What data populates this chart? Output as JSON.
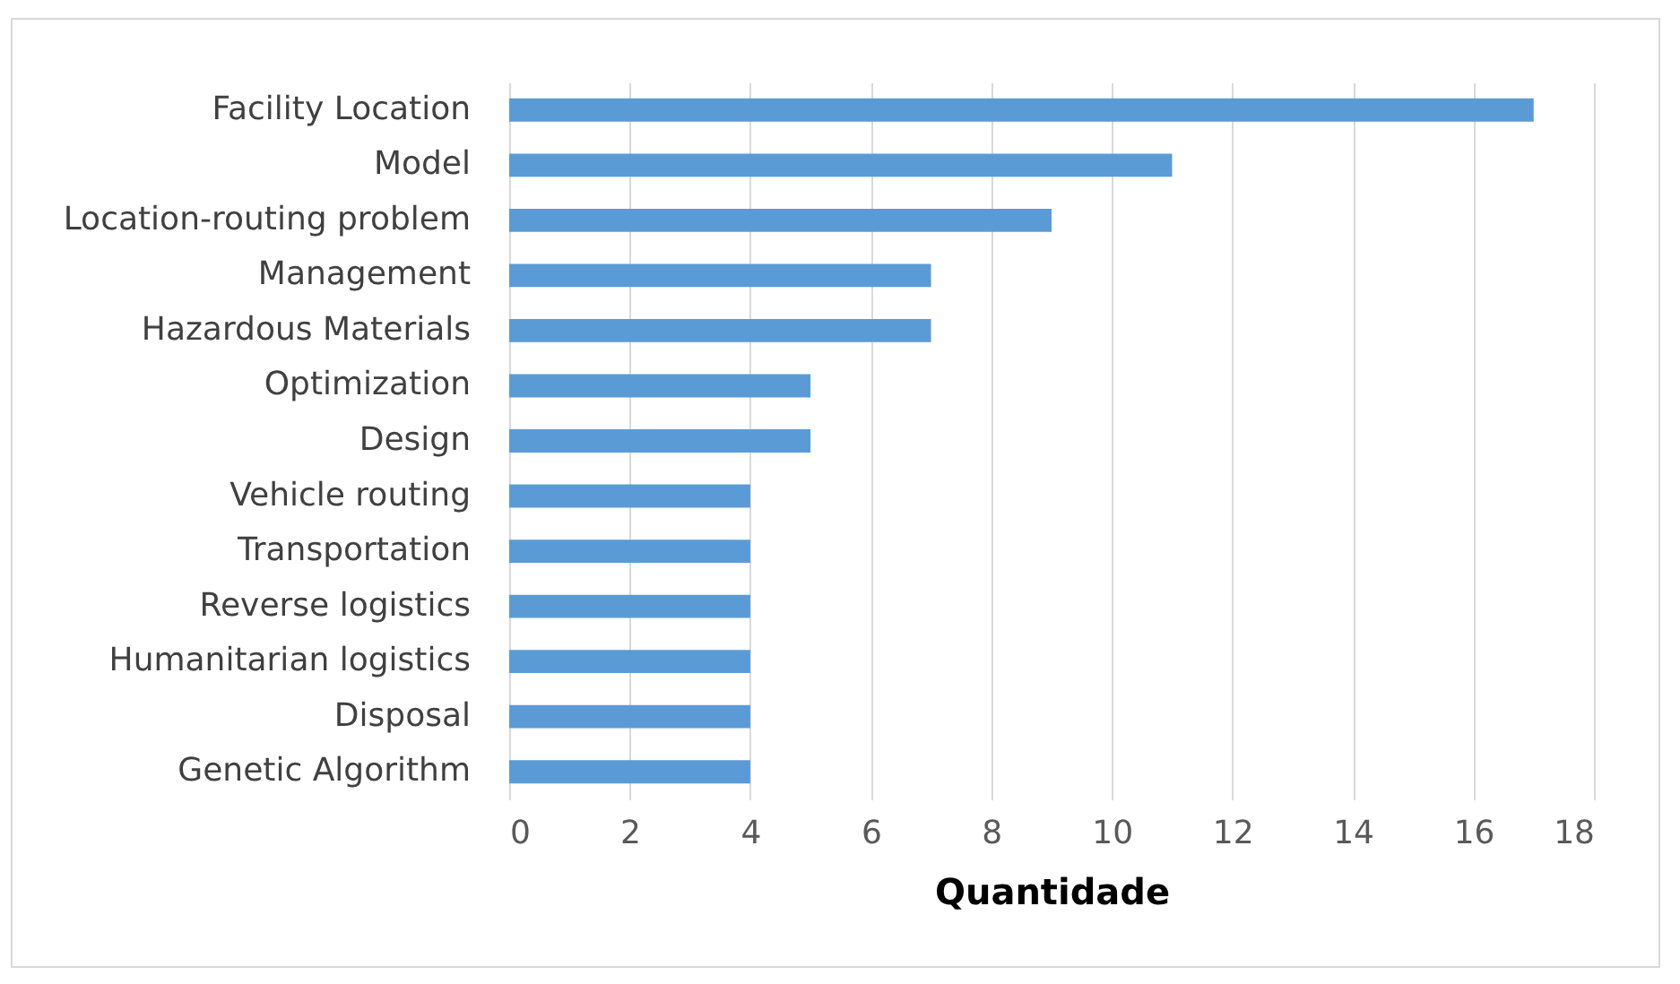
{
  "chart_data": {
    "type": "bar",
    "orientation": "horizontal",
    "xlabel": "Quantidade",
    "categories": [
      "Facility Location",
      "Model",
      "Location-routing problem",
      "Management",
      "Hazardous Materials",
      "Optimization",
      "Design",
      "Vehicle routing",
      "Transportation",
      "Reverse logistics",
      "Humanitarian logistics",
      "Disposal",
      "Genetic Algorithm"
    ],
    "values": [
      17,
      11,
      9,
      7,
      7,
      5,
      5,
      4,
      4,
      4,
      4,
      4,
      4
    ],
    "color": "#5b9bd5",
    "xlim": [
      0,
      18
    ],
    "xticks": [
      0,
      2,
      4,
      6,
      8,
      10,
      12,
      14,
      16,
      18
    ],
    "grid": "x"
  }
}
